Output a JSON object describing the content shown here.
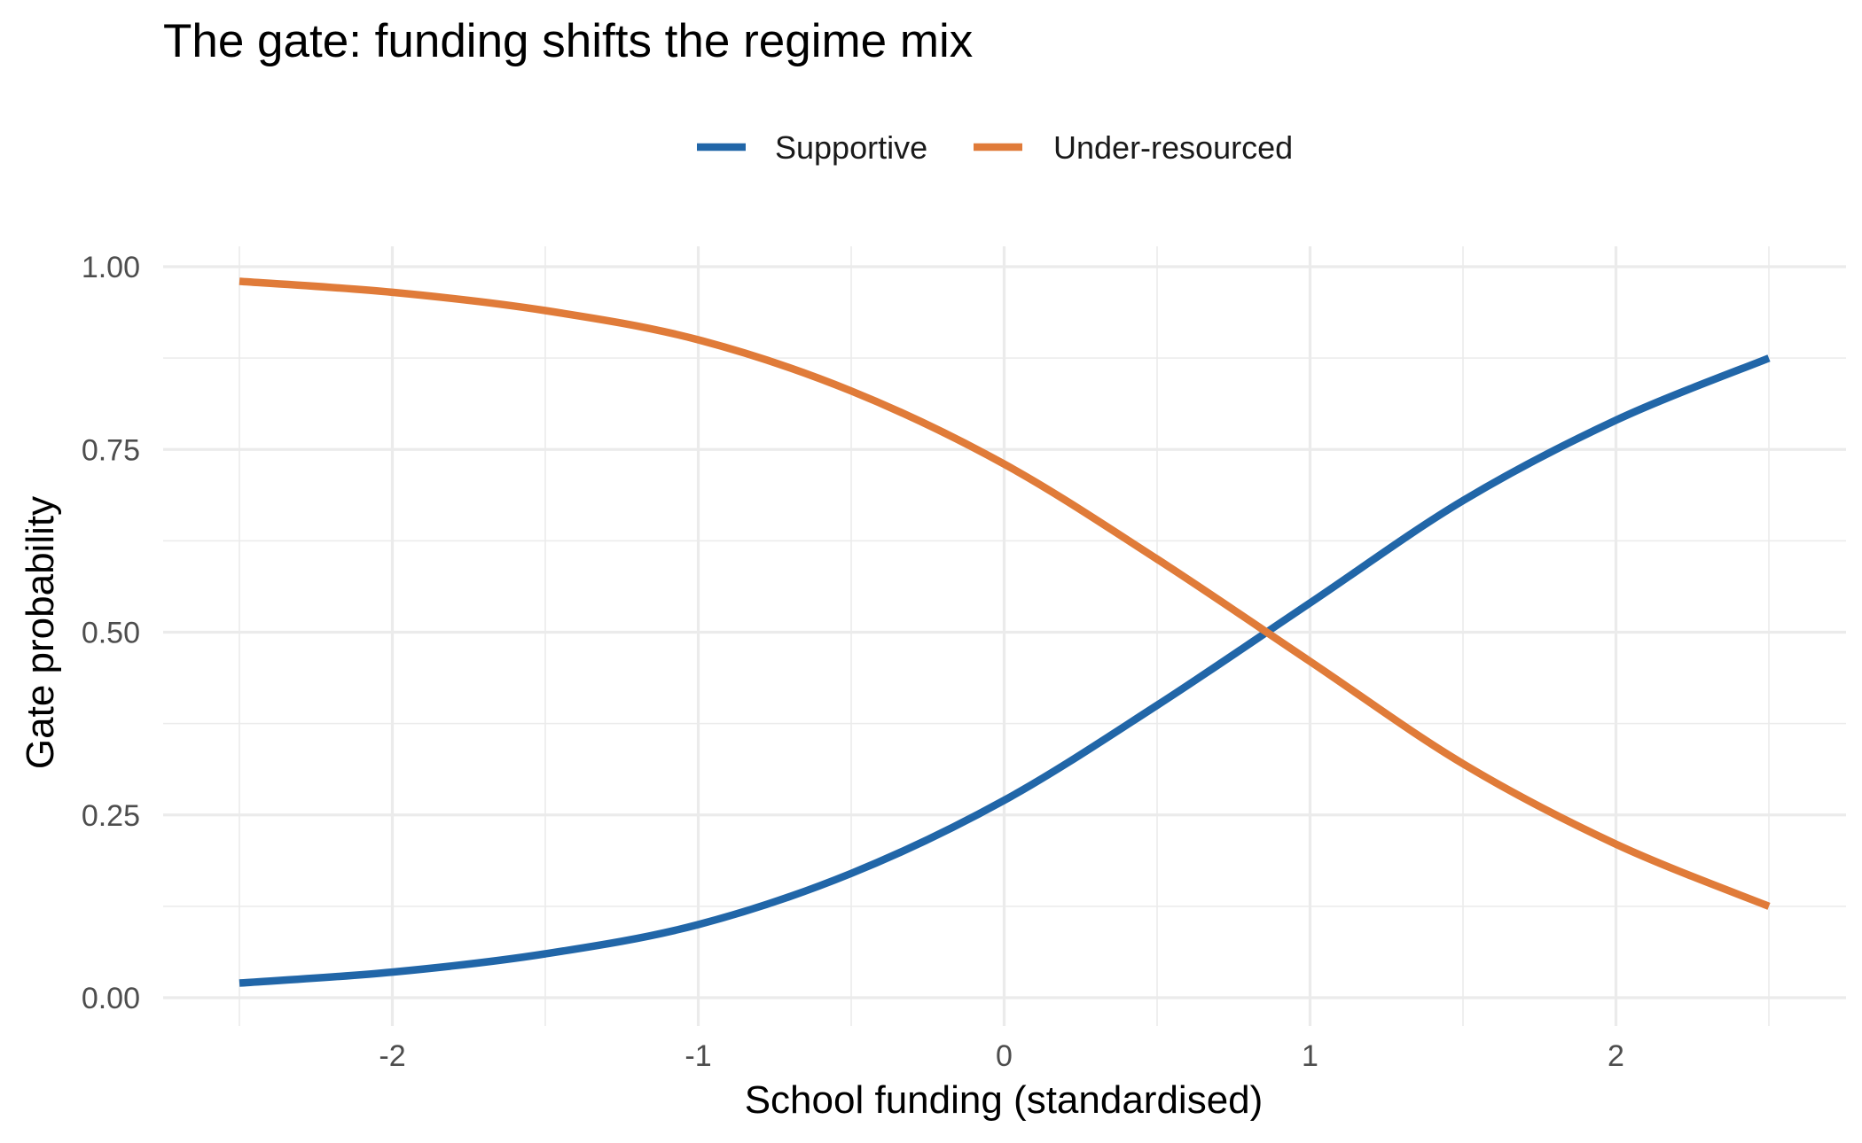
{
  "chart_data": {
    "type": "line",
    "title": "The gate: funding shifts the regime mix",
    "xlabel": "School funding (standardised)",
    "ylabel": "Gate probability",
    "xlim": [
      -2.5,
      2.5
    ],
    "ylim": [
      0,
      1
    ],
    "x_ticks": [
      -2,
      -1,
      0,
      1,
      2
    ],
    "x_tick_labels": [
      "-2",
      "-1",
      "0",
      "1",
      "2"
    ],
    "y_ticks": [
      0,
      0.25,
      0.5,
      0.75,
      1
    ],
    "y_tick_labels": [
      "0.00",
      "0.25",
      "0.50",
      "0.75",
      "1.00"
    ],
    "grid": true,
    "legend_position": "top",
    "x": [
      -2.5,
      -2.0,
      -1.5,
      -1.0,
      -0.5,
      0.0,
      0.5,
      1.0,
      1.5,
      2.0,
      2.5
    ],
    "series": [
      {
        "name": "Supportive",
        "color": "#2166a8",
        "values": [
          0.02,
          0.035,
          0.06,
          0.1,
          0.17,
          0.27,
          0.4,
          0.54,
          0.68,
          0.79,
          0.875
        ]
      },
      {
        "name": "Under-resourced",
        "color": "#e07b39",
        "values": [
          0.98,
          0.965,
          0.94,
          0.9,
          0.83,
          0.73,
          0.6,
          0.46,
          0.32,
          0.21,
          0.125
        ]
      }
    ]
  }
}
